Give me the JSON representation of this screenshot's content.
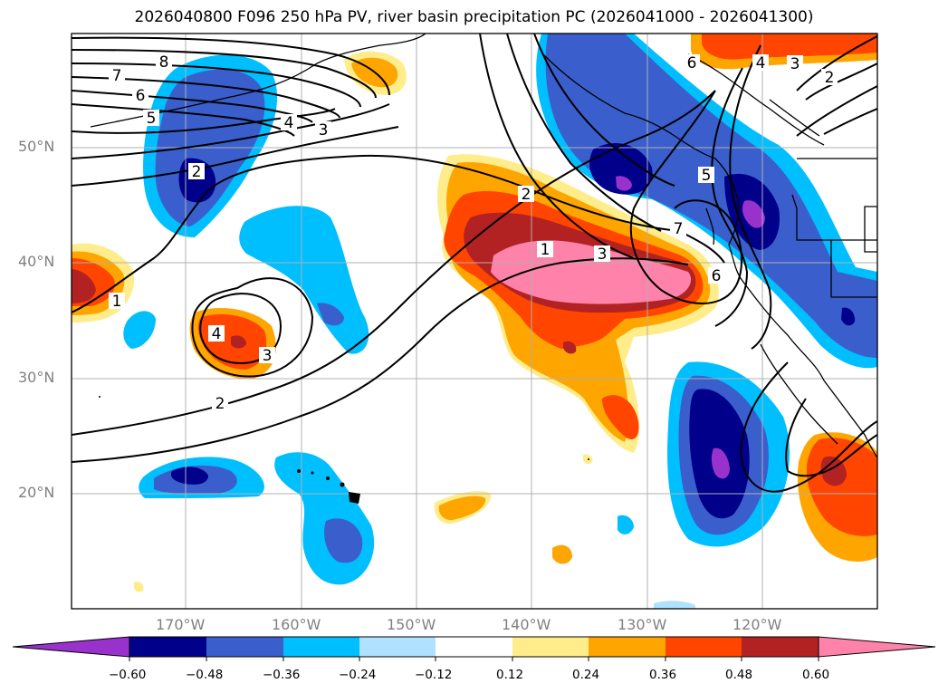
{
  "title": "2026040800 F096 250 hPa PV, river basin precipitation PC (2026041000 - 2026041300)",
  "latitude_labels": [
    "50°N",
    "40°N",
    "30°N",
    "20°N"
  ],
  "longitude_labels": [
    "170°W",
    "160°W",
    "150°W",
    "140°W",
    "130°W",
    "120°W"
  ],
  "colorbar": {
    "ticks": [
      "−0.60",
      "−0.48",
      "−0.36",
      "−0.24",
      "−0.12",
      "0.12",
      "0.24",
      "0.36",
      "0.48",
      "0.60"
    ],
    "colors": [
      "#9932cc",
      "#00008b",
      "#3a5fcd",
      "#00bfff",
      "#b0e2ff",
      "#ffffff",
      "#ffec8b",
      "#ffa500",
      "#ff4500",
      "#b22222",
      "#ff82ab"
    ]
  },
  "pv_contour_labels": [
    "8",
    "7",
    "6",
    "5",
    "4",
    "3",
    "2",
    "1",
    "2",
    "3",
    "4",
    "1",
    "2",
    "3",
    "5",
    "6",
    "7",
    "6",
    "4",
    "3",
    "2"
  ],
  "colors": {
    "frame": "#000000",
    "grid": "#b0b0b0",
    "axis_labels": "#808080"
  }
}
